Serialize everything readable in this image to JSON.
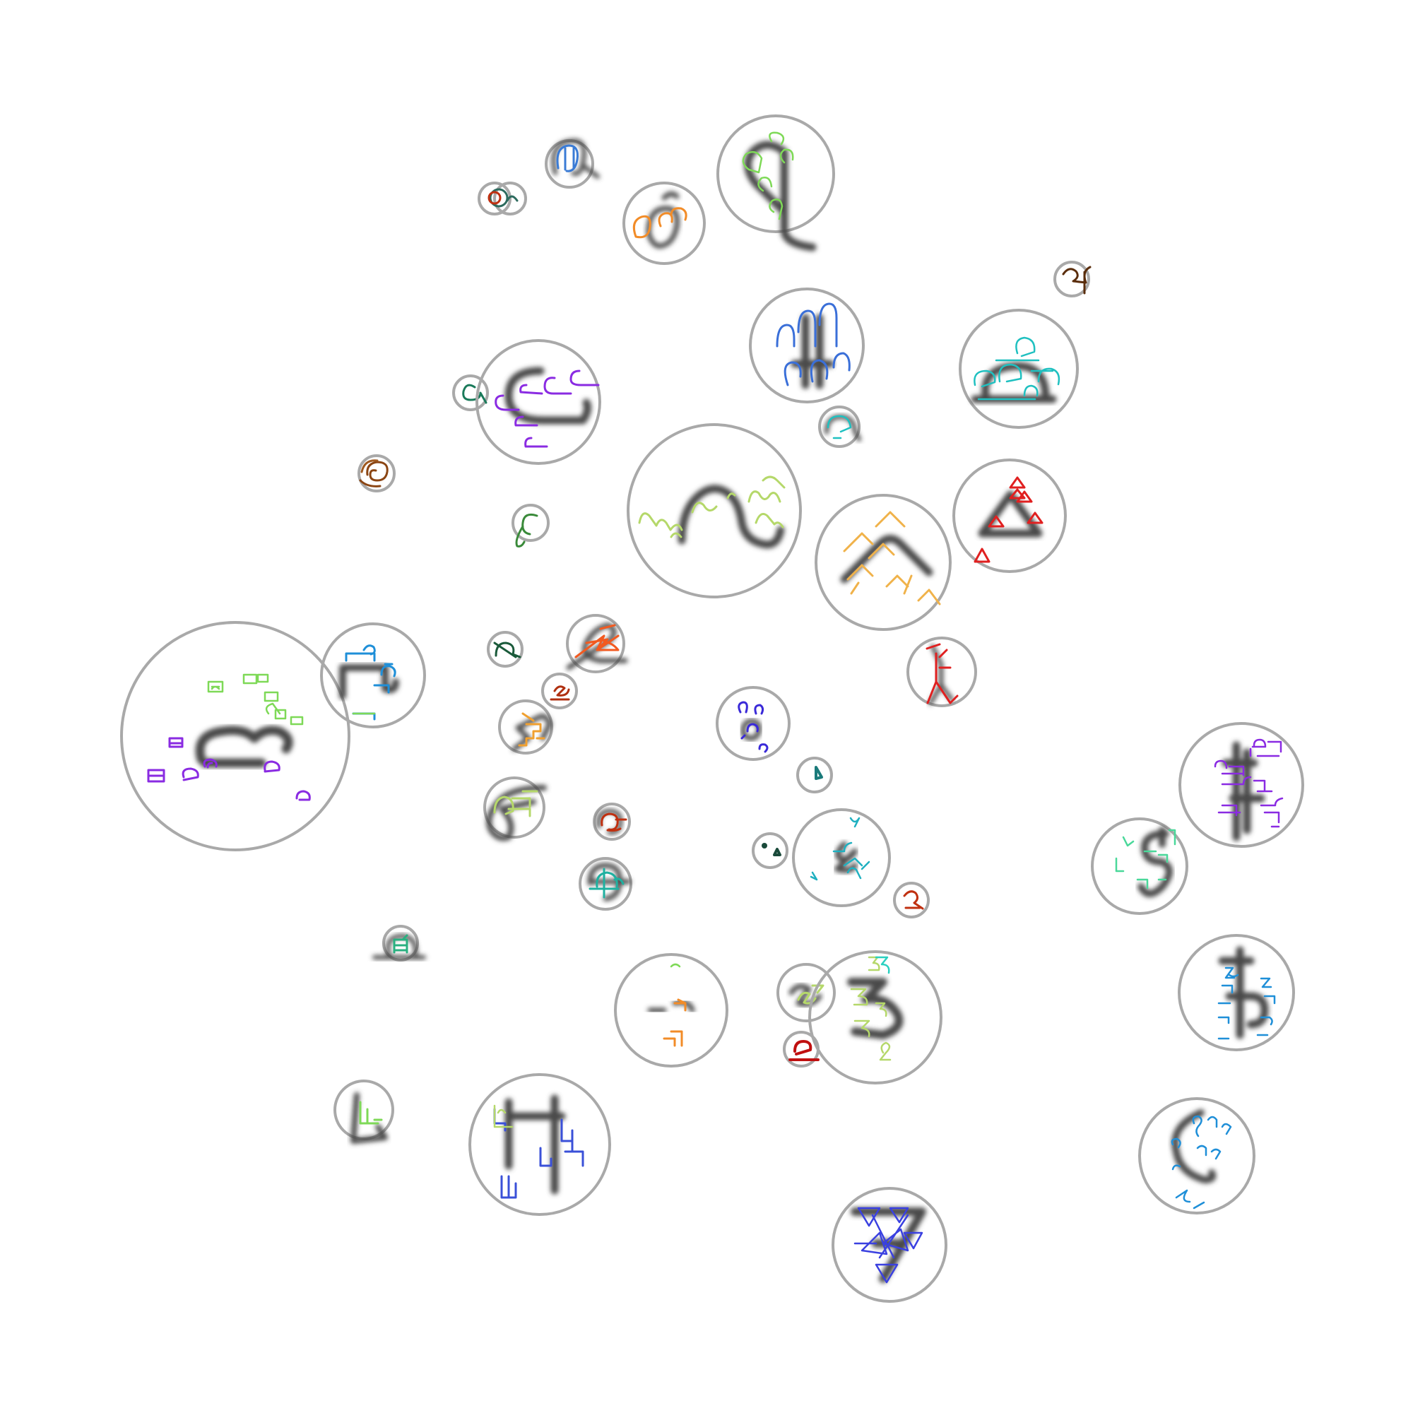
{
  "figure": {
    "description_visible_text": "",
    "background": "#ffffff",
    "ring_color": "#a9a9a9",
    "glyph_color": "#4a4a4a"
  },
  "clusters": [
    {
      "id": "c01",
      "glyph": "loop-double",
      "color": "#2d6b5e"
    },
    {
      "id": "c02",
      "glyph": "tall-loop",
      "color": "#3a7bd5"
    },
    {
      "id": "c03",
      "glyph": "circle-tail",
      "color": "#f28c28"
    },
    {
      "id": "c04",
      "glyph": "q-shape",
      "color": "#7ed957"
    },
    {
      "id": "c05",
      "glyph": "small-hook",
      "color": "#5a2d0c"
    },
    {
      "id": "c06",
      "glyph": "double-arch",
      "color": "#3a6fd8"
    },
    {
      "id": "c07",
      "glyph": "dome",
      "color": "#1fc0c0"
    },
    {
      "id": "c08",
      "glyph": "curl",
      "color": "#1a7a5a"
    },
    {
      "id": "c09",
      "glyph": "c-shape",
      "color": "#8a2be2"
    },
    {
      "id": "c10",
      "glyph": "small-arch",
      "color": "#1fc0c0"
    },
    {
      "id": "c11",
      "glyph": "swirl",
      "color": "#8b4513"
    },
    {
      "id": "c12",
      "glyph": "wave",
      "color": "#b5d86a"
    },
    {
      "id": "c13",
      "glyph": "caret",
      "color": "#f0b24a"
    },
    {
      "id": "c14",
      "glyph": "triangle",
      "color": "#e02020"
    },
    {
      "id": "c15",
      "glyph": "hook-l",
      "color": "#3a8a3a"
    },
    {
      "id": "c16",
      "glyph": "wide-loop",
      "color": "#7ed957"
    },
    {
      "id": "c17",
      "glyph": "corner-hook",
      "color": "#1f8fd8"
    },
    {
      "id": "c18",
      "glyph": "n-curl",
      "color": "#1a5a3a"
    },
    {
      "id": "c19",
      "glyph": "zigzag-knot",
      "color": "#f25a20"
    },
    {
      "id": "c20",
      "glyph": "stick-figure",
      "color": "#e02020"
    },
    {
      "id": "c21",
      "glyph": "tiny-s",
      "color": "#b03010"
    },
    {
      "id": "c22",
      "glyph": "stairs",
      "color": "#f0a030"
    },
    {
      "id": "c23",
      "glyph": "dot-cluster",
      "color": "#3a2ad8"
    },
    {
      "id": "c24",
      "glyph": "small-drop",
      "color": "#1a7a7a"
    },
    {
      "id": "c25",
      "glyph": "stacked-word",
      "color": "#8a2be2"
    },
    {
      "id": "c26",
      "glyph": "loop-flag",
      "color": "#b5d86a"
    },
    {
      "id": "c27",
      "glyph": "curl-small",
      "color": "#c03010"
    },
    {
      "id": "c28",
      "glyph": "dots",
      "color": "#1a7a5a"
    },
    {
      "id": "c29",
      "glyph": "bird",
      "color": "#1fb0c0"
    },
    {
      "id": "c30",
      "glyph": "s-vertical",
      "color": "#4ad89a"
    },
    {
      "id": "c31",
      "glyph": "crossed-circle",
      "color": "#1fb0a0"
    },
    {
      "id": "c32",
      "glyph": "small-hook-2",
      "color": "#c03010"
    },
    {
      "id": "c33",
      "glyph": "box-base",
      "color": "#2ab080"
    },
    {
      "id": "c34",
      "glyph": "scattered-strokes",
      "color": "#f28c28"
    },
    {
      "id": "c35",
      "glyph": "squiggle",
      "color": "#b5d86a"
    },
    {
      "id": "c36",
      "glyph": "three",
      "color": "#2ad0c0"
    },
    {
      "id": "c37",
      "glyph": "small-loop-base",
      "color": "#c01010"
    },
    {
      "id": "c38",
      "glyph": "stacked-numerals",
      "color": "#1f8fd8"
    },
    {
      "id": "c39",
      "glyph": "l-base",
      "color": "#7ed957"
    },
    {
      "id": "c40",
      "glyph": "h-shape",
      "color": "#3a50d8"
    },
    {
      "id": "c41",
      "glyph": "crescent",
      "color": "#1f8fd8"
    },
    {
      "id": "c42",
      "glyph": "star-triangles",
      "color": "#3a40e0"
    }
  ]
}
